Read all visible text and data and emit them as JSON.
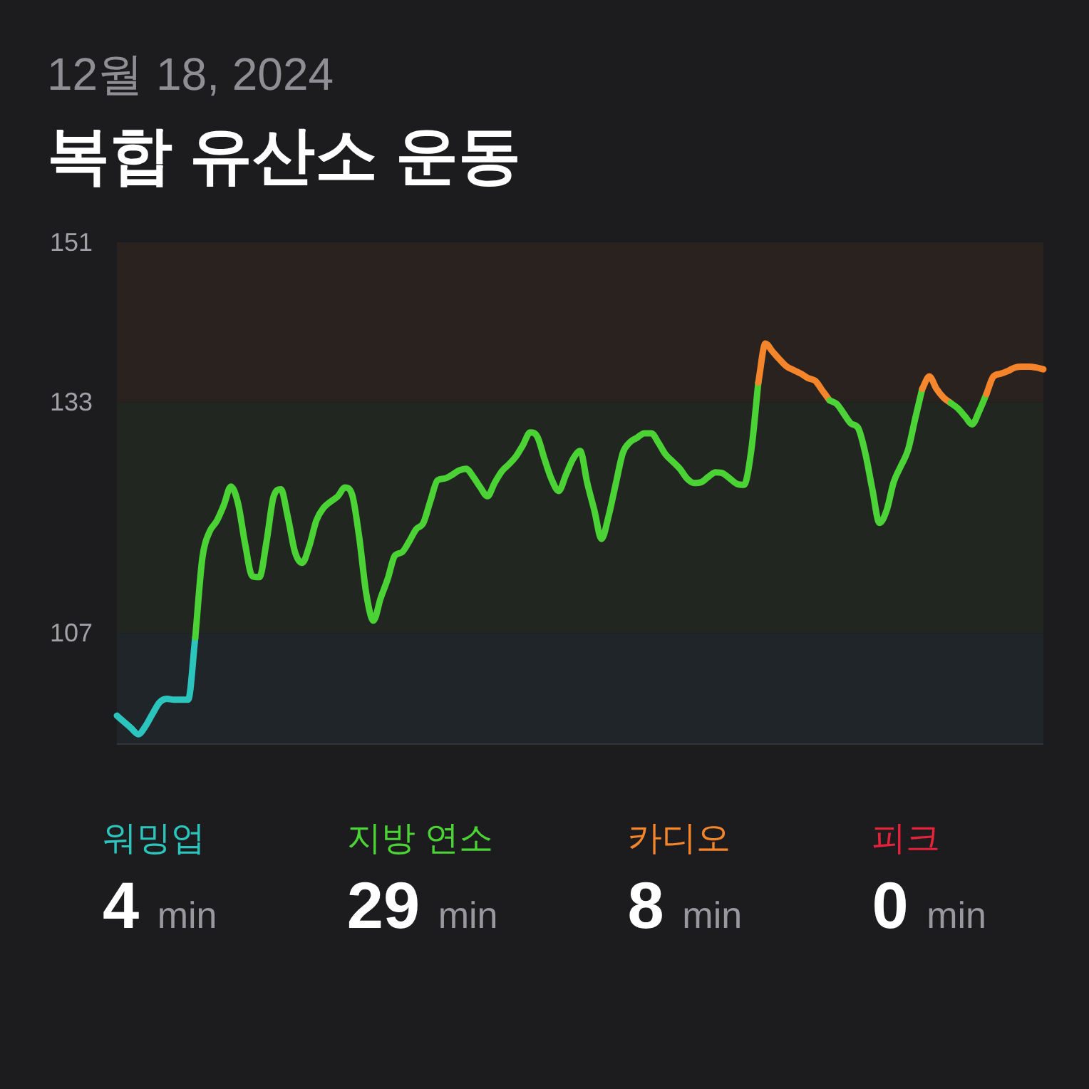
{
  "chart_data": [
    {
      "type": "line",
      "subtitle": "12월 18, 2024",
      "title": "복합 유산소 운동",
      "categories": [
        null,
        null,
        null,
        null,
        null,
        null,
        null,
        null,
        null,
        null,
        null,
        null,
        null,
        null,
        null,
        null,
        null,
        null,
        null,
        null,
        null,
        null,
        null,
        null,
        null,
        null,
        null,
        null,
        null,
        null,
        null,
        null,
        null,
        null,
        null,
        null,
        null,
        null,
        null,
        null,
        null,
        null,
        null,
        null,
        null,
        null,
        null,
        null,
        null,
        null,
        null,
        null,
        null,
        null,
        null,
        null,
        null,
        null,
        null,
        null,
        null,
        null,
        null,
        null,
        null,
        null,
        null,
        null,
        null,
        null,
        null,
        null,
        null,
        null,
        null,
        null,
        null,
        null,
        null,
        null,
        null,
        null,
        null,
        null,
        null,
        null,
        null,
        null,
        null,
        null,
        null,
        null,
        null,
        null,
        null,
        null,
        null,
        null,
        null,
        null,
        null,
        null,
        null,
        null,
        null,
        null,
        null,
        null,
        null,
        null,
        null,
        null,
        null,
        null,
        null,
        null,
        null,
        null,
        null,
        null,
        null,
        null,
        null,
        null,
        null,
        null,
        null,
        null,
        null,
        null,
        null
      ],
      "series": [
        {
          "color": "#2cc5bd",
          "values": [
            97.7,
            97.0,
            96.3,
            95.6,
            96.5,
            97.9,
            99.2,
            99.6,
            99.5,
            99.5,
            99.5,
            106.5,
            null,
            null,
            null,
            null,
            null,
            null,
            null,
            null,
            null,
            null,
            null,
            null,
            null,
            null,
            null,
            null,
            null,
            null,
            null,
            null,
            null,
            null,
            null,
            null,
            null,
            null,
            null,
            null,
            null,
            null,
            null,
            null,
            null,
            null,
            null,
            null,
            null,
            null,
            null,
            null,
            null,
            null,
            null,
            null,
            null,
            null,
            null,
            null,
            null,
            null,
            null,
            null,
            null,
            null,
            null,
            null,
            null,
            null,
            null,
            null,
            null,
            null,
            null,
            null,
            null,
            null,
            null,
            null,
            null,
            null,
            null,
            null,
            null,
            null,
            null,
            null,
            null,
            null,
            null,
            null,
            null,
            null,
            null,
            null,
            null,
            null,
            null,
            null,
            null,
            null,
            null,
            null,
            null,
            null,
            null,
            null,
            null,
            null,
            null,
            null,
            null,
            null,
            null,
            null,
            null,
            null,
            null,
            null,
            null,
            null,
            null,
            null,
            null,
            null,
            null,
            null,
            null,
            null,
            null
          ]
        },
        {
          "color": "#4bd235",
          "values": [
            null,
            null,
            null,
            null,
            null,
            null,
            null,
            null,
            null,
            null,
            null,
            106.5,
            115.5,
            118.4,
            119.6,
            121.4,
            123.5,
            121.6,
            117.0,
            113.4,
            113.3,
            117.3,
            122.4,
            123.2,
            120.0,
            116.1,
            114.9,
            116.8,
            119.7,
            121.1,
            121.8,
            122.4,
            123.4,
            122.6,
            117.8,
            111.4,
            108.4,
            110.9,
            113.1,
            115.7,
            116.1,
            117.3,
            118.7,
            119.4,
            121.9,
            124.2,
            124.4,
            124.8,
            125.3,
            125.5,
            124.6,
            123.4,
            122.4,
            123.9,
            125.2,
            126.0,
            126.9,
            128.2,
            129.6,
            129.1,
            126.6,
            124.3,
            123.0,
            124.8,
            126.6,
            127.5,
            123.9,
            120.8,
            117.6,
            120.2,
            123.8,
            127.3,
            128.5,
            129.0,
            129.5,
            129.5,
            128.4,
            127.1,
            126.3,
            125.5,
            124.4,
            123.9,
            124.0,
            124.6,
            125.1,
            125.0,
            124.4,
            123.8,
            123.7,
            127.5,
            135.2,
            null,
            null,
            null,
            null,
            null,
            null,
            null,
            null,
            null,
            null,
            null,
            null,
            null,
            null,
            null,
            null,
            null,
            null,
            null,
            null,
            null,
            null,
            null,
            null,
            null,
            null,
            null,
            null,
            null,
            null,
            null,
            null,
            null,
            null,
            null,
            null,
            null,
            null,
            null,
            null
          ]
        },
        {
          "color": "#f5852b",
          "values": [
            null,
            null,
            null,
            null,
            null,
            null,
            null,
            null,
            null,
            null,
            null,
            null,
            null,
            null,
            null,
            null,
            null,
            null,
            null,
            null,
            null,
            null,
            null,
            null,
            null,
            null,
            null,
            null,
            null,
            null,
            null,
            null,
            null,
            null,
            null,
            null,
            null,
            null,
            null,
            null,
            null,
            null,
            null,
            null,
            null,
            null,
            null,
            null,
            null,
            null,
            null,
            null,
            null,
            null,
            null,
            null,
            null,
            null,
            null,
            null,
            null,
            null,
            null,
            null,
            null,
            null,
            null,
            null,
            null,
            null,
            null,
            null,
            null,
            null,
            null,
            null,
            null,
            null,
            null,
            null,
            null,
            null,
            null,
            null,
            null,
            null,
            null,
            null,
            null,
            null,
            135.2,
            139.6,
            138.7,
            137.8,
            137.0,
            136.6,
            136.2,
            135.7,
            135.4,
            134.3,
            133.2,
            null,
            null,
            null,
            null,
            null,
            null,
            null,
            null,
            null,
            null,
            null,
            null,
            null,
            null,
            null,
            null,
            null,
            null,
            null,
            null,
            null,
            null,
            null,
            null,
            null,
            null,
            null,
            null,
            null,
            null
          ]
        },
        {
          "color": "#4cd337",
          "values": [
            null,
            null,
            null,
            null,
            null,
            null,
            null,
            null,
            null,
            null,
            null,
            null,
            null,
            null,
            null,
            null,
            null,
            null,
            null,
            null,
            null,
            null,
            null,
            null,
            null,
            null,
            null,
            null,
            null,
            null,
            null,
            null,
            null,
            null,
            null,
            null,
            null,
            null,
            null,
            null,
            null,
            null,
            null,
            null,
            null,
            null,
            null,
            null,
            null,
            null,
            null,
            null,
            null,
            null,
            null,
            null,
            null,
            null,
            null,
            null,
            null,
            null,
            null,
            null,
            null,
            null,
            null,
            null,
            null,
            null,
            null,
            null,
            null,
            null,
            null,
            null,
            null,
            null,
            null,
            null,
            null,
            null,
            null,
            null,
            null,
            null,
            null,
            null,
            null,
            null,
            null,
            null,
            null,
            null,
            null,
            null,
            null,
            null,
            null,
            null,
            133.2,
            132.8,
            131.7,
            130.6,
            130.1,
            127.3,
            123.2,
            119.4,
            120.8,
            124.0,
            125.8,
            127.6,
            131.1,
            134.5,
            null,
            null,
            null,
            null,
            null,
            null,
            null,
            null,
            null,
            null,
            null,
            null,
            null,
            null,
            null,
            null,
            null
          ]
        },
        {
          "color": "#f6872e",
          "values": [
            null,
            null,
            null,
            null,
            null,
            null,
            null,
            null,
            null,
            null,
            null,
            null,
            null,
            null,
            null,
            null,
            null,
            null,
            null,
            null,
            null,
            null,
            null,
            null,
            null,
            null,
            null,
            null,
            null,
            null,
            null,
            null,
            null,
            null,
            null,
            null,
            null,
            null,
            null,
            null,
            null,
            null,
            null,
            null,
            null,
            null,
            null,
            null,
            null,
            null,
            null,
            null,
            null,
            null,
            null,
            null,
            null,
            null,
            null,
            null,
            null,
            null,
            null,
            null,
            null,
            null,
            null,
            null,
            null,
            null,
            null,
            null,
            null,
            null,
            null,
            null,
            null,
            null,
            null,
            null,
            null,
            null,
            null,
            null,
            null,
            null,
            null,
            null,
            null,
            null,
            null,
            null,
            null,
            null,
            null,
            null,
            null,
            null,
            null,
            null,
            null,
            null,
            null,
            null,
            null,
            null,
            null,
            null,
            null,
            null,
            null,
            null,
            null,
            134.5,
            135.9,
            134.5,
            133.5,
            132.9,
            null,
            null,
            null,
            null,
            null,
            null,
            null,
            null,
            null,
            null,
            null,
            null,
            null
          ]
        },
        {
          "color": "#4ad133",
          "values": [
            null,
            null,
            null,
            null,
            null,
            null,
            null,
            null,
            null,
            null,
            null,
            null,
            null,
            null,
            null,
            null,
            null,
            null,
            null,
            null,
            null,
            null,
            null,
            null,
            null,
            null,
            null,
            null,
            null,
            null,
            null,
            null,
            null,
            null,
            null,
            null,
            null,
            null,
            null,
            null,
            null,
            null,
            null,
            null,
            null,
            null,
            null,
            null,
            null,
            null,
            null,
            null,
            null,
            null,
            null,
            null,
            null,
            null,
            null,
            null,
            null,
            null,
            null,
            null,
            null,
            null,
            null,
            null,
            null,
            null,
            null,
            null,
            null,
            null,
            null,
            null,
            null,
            null,
            null,
            null,
            null,
            null,
            null,
            null,
            null,
            null,
            null,
            null,
            null,
            null,
            null,
            null,
            null,
            null,
            null,
            null,
            null,
            null,
            null,
            null,
            null,
            null,
            null,
            null,
            null,
            null,
            null,
            null,
            null,
            null,
            null,
            null,
            null,
            null,
            null,
            null,
            null,
            132.9,
            132.3,
            131.4,
            130.5,
            132.0,
            133.9,
            null,
            null,
            null,
            null,
            null,
            null,
            null,
            null
          ]
        },
        {
          "color": "#f48329",
          "values": [
            null,
            null,
            null,
            null,
            null,
            null,
            null,
            null,
            null,
            null,
            null,
            null,
            null,
            null,
            null,
            null,
            null,
            null,
            null,
            null,
            null,
            null,
            null,
            null,
            null,
            null,
            null,
            null,
            null,
            null,
            null,
            null,
            null,
            null,
            null,
            null,
            null,
            null,
            null,
            null,
            null,
            null,
            null,
            null,
            null,
            null,
            null,
            null,
            null,
            null,
            null,
            null,
            null,
            null,
            null,
            null,
            null,
            null,
            null,
            null,
            null,
            null,
            null,
            null,
            null,
            null,
            null,
            null,
            null,
            null,
            null,
            null,
            null,
            null,
            null,
            null,
            null,
            null,
            null,
            null,
            null,
            null,
            null,
            null,
            null,
            null,
            null,
            null,
            null,
            null,
            null,
            null,
            null,
            null,
            null,
            null,
            null,
            null,
            null,
            null,
            null,
            null,
            null,
            null,
            null,
            null,
            null,
            null,
            null,
            null,
            null,
            null,
            null,
            null,
            null,
            null,
            null,
            null,
            null,
            null,
            null,
            null,
            133.9,
            135.9,
            136.2,
            136.5,
            136.9,
            137.0,
            137.0,
            136.9,
            136.7
          ]
        }
      ],
      "ylim": [
        94.5,
        151
      ],
      "yticks": [
        107,
        133,
        151
      ],
      "tick_labels": "y",
      "bands": [
        {
          "axis": "y",
          "from": 94.5,
          "to": 107,
          "color": "#1f2528"
        },
        {
          "axis": "y",
          "from": 107,
          "to": 133,
          "color": "#212621"
        },
        {
          "axis": "y",
          "from": 133,
          "to": 151,
          "color": "#29221f"
        }
      ]
    },
    {
      "type": "other",
      "categories": [
        "워밍업",
        "지방 연소",
        "카디오",
        "피크"
      ],
      "colors": [
        "#2cc5bd",
        "#4bd235",
        "#f5852b",
        "#e3233c"
      ],
      "annotations": [
        "4 min",
        "29 min",
        "8 min",
        "0 min"
      ]
    }
  ]
}
